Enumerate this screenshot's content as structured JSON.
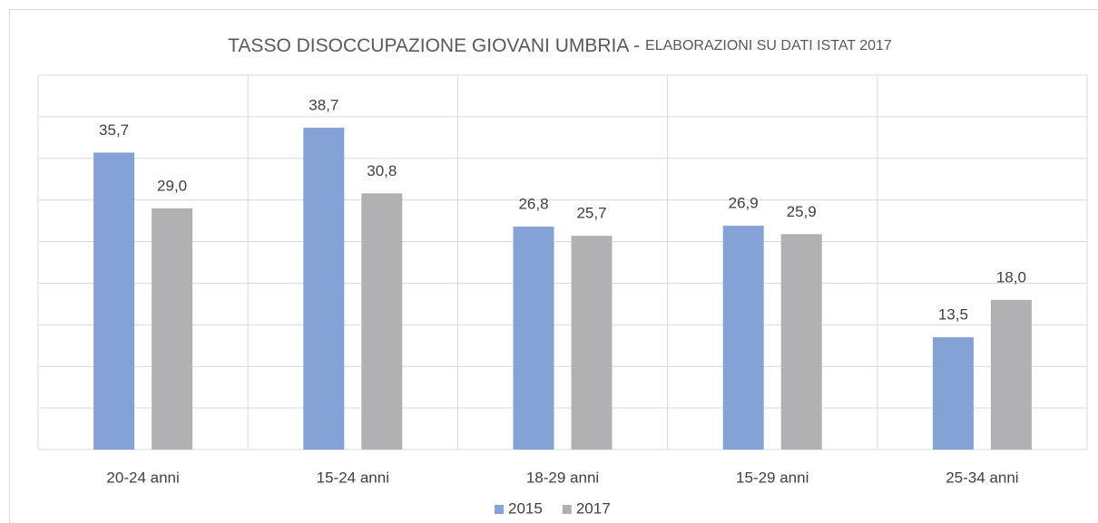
{
  "chart_data": {
    "type": "bar",
    "title": "TASSO DISOCCUPAZIONE GIOVANI UMBRIA -",
    "subtitle": "ELABORAZIONI SU DATI ISTAT 2017",
    "categories": [
      "20-24 anni",
      "15-24 anni",
      "18-29 anni",
      "15-29 anni",
      "25-34 anni"
    ],
    "series": [
      {
        "name": "2015",
        "color": "#84a2d5",
        "values": [
          35.7,
          38.7,
          26.8,
          26.9,
          13.5
        ],
        "value_labels": [
          "35,7",
          "38,7",
          "26,8",
          "26,9",
          "13,5"
        ]
      },
      {
        "name": "2017",
        "color": "#b1b1b3",
        "values": [
          29.0,
          30.8,
          25.7,
          25.9,
          18.0
        ],
        "value_labels": [
          "29,0",
          "30,8",
          "25,7",
          "25,9",
          "18,0"
        ]
      }
    ],
    "ylim": [
      0,
      45
    ],
    "yticks": [
      0,
      5,
      10,
      15,
      20,
      25,
      30,
      35,
      40,
      45
    ],
    "grid": true,
    "legend": "bottom"
  }
}
